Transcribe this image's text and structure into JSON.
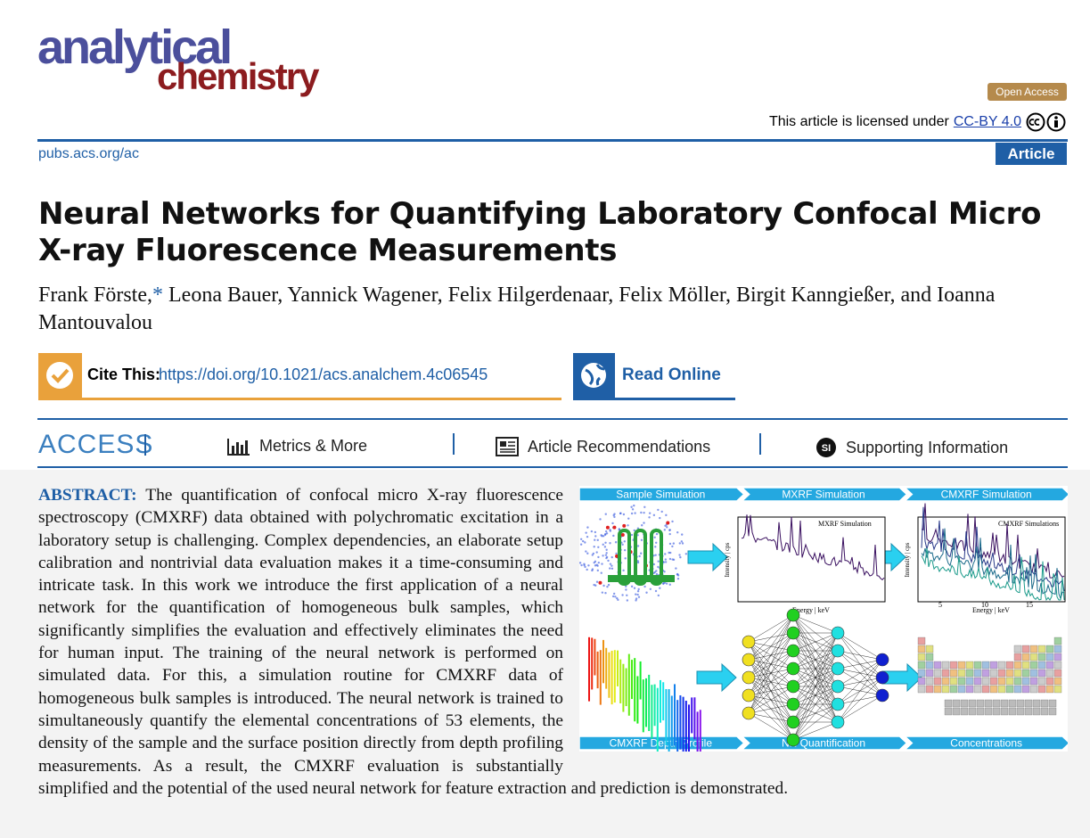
{
  "header": {
    "journal_logo": [
      "analytical",
      "chemistry"
    ],
    "open_access": "Open Access",
    "license_text": "This article is licensed under",
    "license_link": "CC-BY 4.0",
    "url": "pubs.acs.org/ac",
    "article_type": "Article"
  },
  "article": {
    "title": "Neural Networks for Quantifying Laboratory Confocal Micro X-ray Fluorescence Measurements",
    "authors": {
      "first": "Frank Förste,",
      "corresponding_mark": "*",
      "rest": "Leona Bauer, Yannick Wagener, Felix Hilgerdenaar, Felix Möller, Birgit Kanngießer, and Ioanna Mantouvalou"
    },
    "cite_label": "Cite This:",
    "doi": "https://doi.org/10.1021/acs.analchem.4c06545",
    "read_online": "Read Online"
  },
  "access_bar": {
    "label": "ACCESS",
    "links": [
      "Metrics & More",
      "Article Recommendations",
      "Supporting Information"
    ],
    "si_icon": "SI"
  },
  "abstract": {
    "label": "ABSTRACT:",
    "text": "The quantification of confocal micro X-ray fluorescence spectroscopy (CMXRF) data obtained with polychromatic excitation in a laboratory setup is challenging. Complex dependencies, an elaborate setup calibration and nontrivial data evaluation makes it a time-consuming and intricate task. In this work we introduce the first application of a neural network for the quantification of homogeneous bulk samples, which significantly simplifies the evaluation and effectively eliminates the need for human input. The training of the neural network is performed on simulated data. For this, a simulation routine for CMXRF data of homogeneous bulk samples is introduced. The neural network is trained to simultaneously quantify the elemental concentrations of 53 elements, the density of the sample and the surface position directly from depth profiling measurements. As a result, the CMXRF evaluation is substantially simplified and the potential of the used neural network for feature extraction and prediction is demonstrated."
  },
  "graphic": {
    "top_steps": [
      "Sample Simulation",
      "MXRF Simulation",
      "CMXRF Simulation"
    ],
    "bottom_steps": [
      "CMXRF Depth Profile",
      "NN Quantification",
      "Concentrations"
    ],
    "plot1": {
      "legend": "MXRF Simulation",
      "xlabel": "Energy | keV",
      "ylabel": "Intensity | cps"
    },
    "plot2": {
      "legend": "CMXRF Simulations",
      "xlabel": "Energy | keV",
      "ylabel": "Intensity | cps",
      "xticks": [
        "5",
        "10",
        "15"
      ]
    }
  }
}
